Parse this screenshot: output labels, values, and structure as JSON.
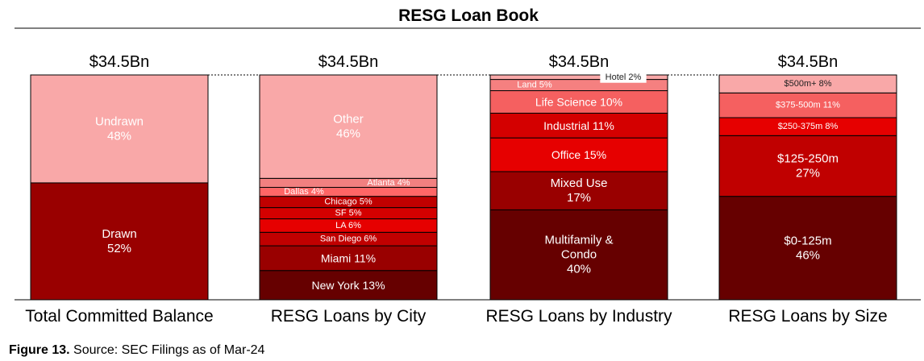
{
  "chart_data": {
    "type": "bar",
    "stacked": true,
    "title": "RESG Loan Book",
    "unit": "%",
    "ylim": [
      0,
      100
    ],
    "grid": false,
    "legend": "none",
    "categories": [
      "Total Committed Balance",
      "RESG Loans by City",
      "RESG Loans by Industry",
      "RESG Loans by Size"
    ],
    "totals": [
      "$34.5Bn",
      "$34.5Bn",
      "$34.5Bn",
      "$34.5Bn"
    ],
    "stacks": [
      [
        {
          "label": "Drawn",
          "value": 52,
          "color": "#990000"
        },
        {
          "label": "Undrawn",
          "value": 48,
          "color": "#f9a8a8"
        }
      ],
      [
        {
          "label": "New York 13%",
          "value": 13,
          "color": "#660000"
        },
        {
          "label": "Miami 11%",
          "value": 11,
          "color": "#990000"
        },
        {
          "label": "San Diego 6%",
          "value": 6,
          "color": "#c00000"
        },
        {
          "label": "LA 6%",
          "value": 6,
          "color": "#e60000"
        },
        {
          "label": "SF 5%",
          "value": 5,
          "color": "#d40000"
        },
        {
          "label": "Chicago 5%",
          "value": 5,
          "color": "#c00000"
        },
        {
          "label": "Dallas 4%",
          "value": 4,
          "color": "#ff6666"
        },
        {
          "label": "Atlanta 4%",
          "value": 4,
          "color": "#f28080"
        },
        {
          "label": "Other",
          "value": 46,
          "color": "#f9a8a8"
        }
      ],
      [
        {
          "label": "Multifamily & Condo",
          "value": 40,
          "color": "#660000"
        },
        {
          "label": "Mixed Use",
          "value": 17,
          "color": "#990000"
        },
        {
          "label": "Office 15%",
          "value": 15,
          "color": "#e60000"
        },
        {
          "label": "Industrial 11%",
          "value": 11,
          "color": "#d40000"
        },
        {
          "label": "Life Science 10%",
          "value": 10,
          "color": "#f56060"
        },
        {
          "label": "Land 5%",
          "value": 5,
          "color": "#f58080"
        },
        {
          "label": "Hotel 2%",
          "value": 2,
          "color": "#f9a8a8"
        }
      ],
      [
        {
          "label": "$0-125m",
          "value": 46,
          "color": "#660000"
        },
        {
          "label": "$125-250m",
          "value": 27,
          "color": "#c00000"
        },
        {
          "label": "$250-375m 8%",
          "value": 8,
          "color": "#e60000"
        },
        {
          "label": "$375-500m 11%",
          "value": 11,
          "color": "#f56060"
        },
        {
          "label": "$500m+ 8%",
          "value": 8,
          "color": "#f9a8a8"
        }
      ]
    ],
    "segment_texts": [
      [
        [
          "Drawn",
          "52%"
        ],
        [
          "Undrawn",
          "48%"
        ]
      ],
      [
        [
          "New York 13%"
        ],
        [
          "Miami 11%"
        ],
        [
          "San Diego 6%"
        ],
        [
          "LA 6%"
        ],
        [
          "SF 5%"
        ],
        [
          "Chicago 5%"
        ],
        [
          "Dallas 4%"
        ],
        [
          "Atlanta 4%"
        ],
        [
          "Other",
          "46%"
        ]
      ],
      [
        [
          "Multifamily &",
          "Condo",
          "40%"
        ],
        [
          "Mixed Use",
          "17%"
        ],
        [
          "Office 15%"
        ],
        [
          "Industrial 11%"
        ],
        [
          "Life Science 10%"
        ],
        [
          "Land 5%"
        ],
        [
          "Hotel 2%"
        ]
      ],
      [
        [
          "$0-125m",
          "46%"
        ],
        [
          "$125-250m",
          "27%"
        ],
        [
          "$250-375m 8%"
        ],
        [
          "$375-500m 11%"
        ],
        [
          "$500m+ 8%"
        ]
      ]
    ]
  },
  "caption": {
    "figure_label": "Figure 13.",
    "source_text": "Source: SEC Filings as of Mar-24"
  }
}
